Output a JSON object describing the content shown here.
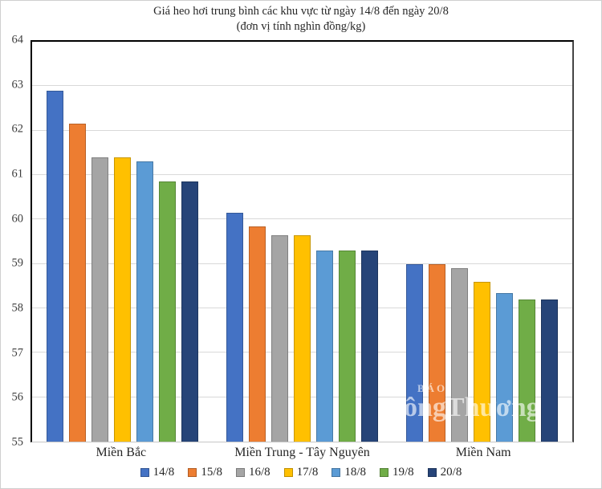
{
  "title": {
    "line1": "Giá heo hơi trung bình các khu vực từ ngày 14/8 đến ngày 20/8",
    "line2": "(đơn vị tính nghìn đồng/kg)"
  },
  "chart_data": {
    "type": "bar",
    "categories": [
      "Miền Bắc",
      "Miền Trung - Tây Nguyên",
      "Miền Nam"
    ],
    "series": [
      {
        "name": "14/8",
        "color": "#4472C4",
        "values": [
          62.9,
          60.15,
          59.0
        ]
      },
      {
        "name": "15/8",
        "color": "#ED7D31",
        "values": [
          62.15,
          59.85,
          59.0
        ]
      },
      {
        "name": "16/8",
        "color": "#A5A5A5",
        "values": [
          61.4,
          59.65,
          58.9
        ]
      },
      {
        "name": "17/8",
        "color": "#FFC000",
        "values": [
          61.4,
          59.65,
          58.6
        ]
      },
      {
        "name": "18/8",
        "color": "#5B9BD5",
        "values": [
          61.3,
          59.3,
          58.35
        ]
      },
      {
        "name": "19/8",
        "color": "#70AD47",
        "values": [
          60.85,
          59.3,
          58.2
        ]
      },
      {
        "name": "20/8",
        "color": "#264478",
        "values": [
          60.85,
          59.3,
          58.2
        ]
      }
    ],
    "ylim": [
      55,
      64
    ],
    "yticks": [
      "55",
      "56",
      "57",
      "58",
      "59",
      "60",
      "61",
      "62",
      "63",
      "64"
    ],
    "grid": true,
    "legend_position": "bottom"
  },
  "watermark": {
    "top": "BÁO",
    "main": "ôngThương"
  }
}
